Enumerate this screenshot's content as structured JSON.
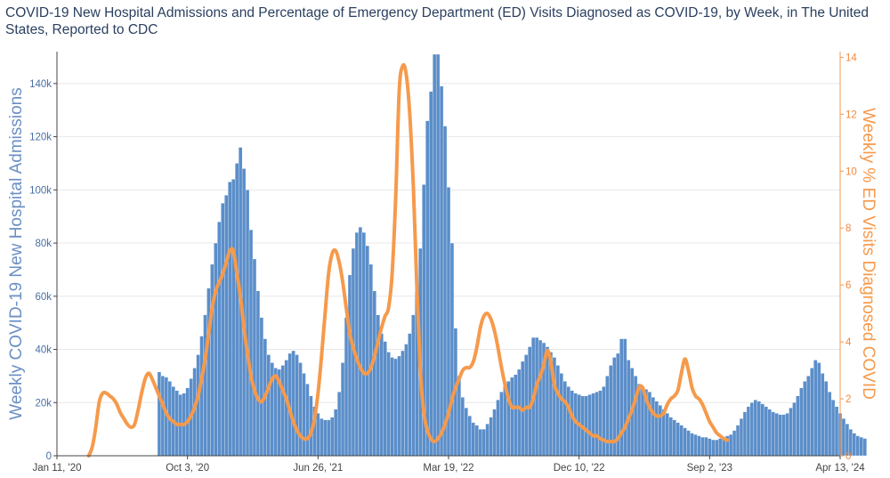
{
  "title": "COVID-19 New Hospital Admissions and Percentage of Emergency Department (ED) Visits Diagnosed as COVID-19, by Week, in The United States, Reported to CDC",
  "chart_data": {
    "type": "bar",
    "title": "COVID-19 New Hospital Admissions and Percentage of Emergency Department (ED) Visits Diagnosed as COVID-19, by Week, in The United States, Reported to CDC",
    "xlabel": "",
    "ylabel": "Weekly COVID-19 New Hospital Admissions",
    "y2label": "Weekly % ED Visits Diagnosed COVID",
    "ylim": [
      0,
      152000
    ],
    "y2lim": [
      0,
      14.2
    ],
    "xlim": [
      "2020-01-11",
      "2024-04-13"
    ],
    "x_ticks": [
      "Jan 11, '20",
      "Oct 3, '20",
      "Jun 26, '21",
      "Mar 19, '22",
      "Dec 10, '22",
      "Sep 2, '23",
      "Apr 13, '24"
    ],
    "y_ticks": [
      "0",
      "20k",
      "40k",
      "60k",
      "80k",
      "100k",
      "120k",
      "140k"
    ],
    "y2_ticks": [
      "0",
      "2",
      "4",
      "6",
      "8",
      "10",
      "12",
      "14"
    ],
    "colors": {
      "bars": "#5b8ec9",
      "ed_line": "#f59a4c"
    },
    "series": [
      {
        "name": "Weekly COVID-19 New Hospital Admissions",
        "type": "bar",
        "x_start": "2020-08-01",
        "x_end": "2024-04-13",
        "interval_days": 7,
        "values": [
          31500,
          30000,
          29500,
          28000,
          26000,
          24500,
          23000,
          23500,
          25500,
          29000,
          33000,
          38000,
          45000,
          53000,
          63000,
          72000,
          80000,
          88000,
          95000,
          98000,
          103000,
          104000,
          110000,
          116000,
          108000,
          100000,
          85000,
          74000,
          62000,
          52000,
          44000,
          38000,
          35000,
          33000,
          32500,
          34000,
          36000,
          38500,
          39500,
          38000,
          35000,
          31000,
          27000,
          22500,
          18500,
          16000,
          14000,
          13500,
          13500,
          14500,
          17500,
          24000,
          35000,
          52000,
          68000,
          78000,
          84000,
          86000,
          84000,
          79000,
          72000,
          62000,
          53000,
          46000,
          43000,
          39000,
          37000,
          36500,
          37500,
          39500,
          42000,
          46000,
          53000,
          62000,
          78000,
          102000,
          126000,
          137000,
          151000,
          151000,
          139000,
          124000,
          101000,
          80000,
          48000,
          30000,
          22000,
          18000,
          15000,
          12500,
          11500,
          10000,
          10000,
          12000,
          14500,
          17500,
          21000,
          24000,
          26500,
          28000,
          29500,
          30500,
          32500,
          35500,
          38000,
          41000,
          44500,
          44500,
          43500,
          42500,
          41000,
          39000,
          37000,
          34000,
          31000,
          28000,
          26000,
          24500,
          23500,
          23000,
          22500,
          22500,
          23000,
          23500,
          24000,
          24500,
          26000,
          30000,
          34000,
          37000,
          38500,
          44000,
          44000,
          36000,
          33000,
          30000,
          27000,
          26000,
          25000,
          24000,
          22000,
          20500,
          19000,
          17500,
          16000,
          14500,
          13500,
          12500,
          11500,
          10500,
          9500,
          8500,
          8000,
          7500,
          7000,
          7000,
          6500,
          6000,
          6000,
          6500,
          7000,
          7500,
          8000,
          9500,
          11500,
          14000,
          16500,
          18500,
          20000,
          21000,
          20500,
          19500,
          18500,
          17500,
          16500,
          16000,
          15500,
          15500,
          16000,
          18000,
          20000,
          22500,
          25500,
          28000,
          30000,
          33000,
          36000,
          35000,
          31000,
          28000,
          24000,
          21000,
          18500,
          16000,
          14000,
          12000,
          10000,
          8500,
          7500,
          7000,
          6500
        ]
      },
      {
        "name": "Weekly % ED Visits Diagnosed COVID",
        "type": "line",
        "points": [
          [
            "2020-03-14",
            0.0
          ],
          [
            "2020-03-21",
            0.3
          ],
          [
            "2020-03-28",
            1.0
          ],
          [
            "2020-04-04",
            1.9
          ],
          [
            "2020-04-11",
            2.2
          ],
          [
            "2020-04-18",
            2.2
          ],
          [
            "2020-04-25",
            2.1
          ],
          [
            "2020-05-02",
            2.0
          ],
          [
            "2020-05-09",
            1.8
          ],
          [
            "2020-05-16",
            1.5
          ],
          [
            "2020-05-23",
            1.3
          ],
          [
            "2020-05-30",
            1.1
          ],
          [
            "2020-06-06",
            1.0
          ],
          [
            "2020-06-13",
            1.1
          ],
          [
            "2020-06-20",
            1.6
          ],
          [
            "2020-06-27",
            2.2
          ],
          [
            "2020-07-04",
            2.7
          ],
          [
            "2020-07-11",
            2.9
          ],
          [
            "2020-07-18",
            2.7
          ],
          [
            "2020-07-25",
            2.4
          ],
          [
            "2020-08-01",
            2.1
          ],
          [
            "2020-08-08",
            1.8
          ],
          [
            "2020-08-15",
            1.5
          ],
          [
            "2020-08-22",
            1.3
          ],
          [
            "2020-08-29",
            1.2
          ],
          [
            "2020-09-05",
            1.1
          ],
          [
            "2020-09-12",
            1.1
          ],
          [
            "2020-09-19",
            1.1
          ],
          [
            "2020-09-26",
            1.2
          ],
          [
            "2020-10-03",
            1.4
          ],
          [
            "2020-10-10",
            1.7
          ],
          [
            "2020-10-17",
            2.1
          ],
          [
            "2020-10-24",
            2.7
          ],
          [
            "2020-10-31",
            3.4
          ],
          [
            "2020-11-07",
            4.3
          ],
          [
            "2020-11-14",
            5.2
          ],
          [
            "2020-11-21",
            5.8
          ],
          [
            "2020-11-28",
            6.1
          ],
          [
            "2020-12-05",
            6.4
          ],
          [
            "2020-12-12",
            6.8
          ],
          [
            "2020-12-19",
            7.2
          ],
          [
            "2020-12-26",
            7.2
          ],
          [
            "2021-01-02",
            6.4
          ],
          [
            "2021-01-09",
            5.6
          ],
          [
            "2021-01-16",
            4.5
          ],
          [
            "2021-01-23",
            3.6
          ],
          [
            "2021-01-30",
            2.8
          ],
          [
            "2021-02-06",
            2.3
          ],
          [
            "2021-02-13",
            2.0
          ],
          [
            "2021-02-20",
            1.9
          ],
          [
            "2021-02-27",
            2.1
          ],
          [
            "2021-03-06",
            2.4
          ],
          [
            "2021-03-13",
            2.7
          ],
          [
            "2021-03-20",
            2.8
          ],
          [
            "2021-03-27",
            2.6
          ],
          [
            "2021-04-03",
            2.3
          ],
          [
            "2021-04-10",
            2.0
          ],
          [
            "2021-04-17",
            1.6
          ],
          [
            "2021-04-24",
            1.2
          ],
          [
            "2021-05-01",
            0.9
          ],
          [
            "2021-05-08",
            0.7
          ],
          [
            "2021-05-15",
            0.6
          ],
          [
            "2021-05-22",
            0.6
          ],
          [
            "2021-05-29",
            0.8
          ],
          [
            "2021-06-05",
            1.3
          ],
          [
            "2021-06-12",
            2.2
          ],
          [
            "2021-06-19",
            3.5
          ],
          [
            "2021-06-26",
            5.0
          ],
          [
            "2021-07-03",
            6.4
          ],
          [
            "2021-07-10",
            7.1
          ],
          [
            "2021-07-17",
            7.2
          ],
          [
            "2021-07-24",
            6.8
          ],
          [
            "2021-07-31",
            6.1
          ],
          [
            "2021-08-07",
            5.2
          ],
          [
            "2021-08-14",
            4.3
          ],
          [
            "2021-08-21",
            3.8
          ],
          [
            "2021-08-28",
            3.4
          ],
          [
            "2021-09-04",
            3.1
          ],
          [
            "2021-09-11",
            2.9
          ],
          [
            "2021-09-18",
            2.9
          ],
          [
            "2021-09-25",
            3.1
          ],
          [
            "2021-10-02",
            3.5
          ],
          [
            "2021-10-09",
            4.0
          ],
          [
            "2021-10-16",
            4.5
          ],
          [
            "2021-10-23",
            4.9
          ],
          [
            "2021-10-30",
            5.2
          ],
          [
            "2021-11-06",
            6.4
          ],
          [
            "2021-11-13",
            9.0
          ],
          [
            "2021-11-20",
            12.8
          ],
          [
            "2021-11-27",
            13.7
          ],
          [
            "2021-12-04",
            13.4
          ],
          [
            "2021-12-11",
            12.0
          ],
          [
            "2021-12-18",
            9.5
          ],
          [
            "2021-12-25",
            6.0
          ],
          [
            "2022-01-01",
            3.0
          ],
          [
            "2022-01-08",
            1.5
          ],
          [
            "2022-01-15",
            0.9
          ],
          [
            "2022-01-22",
            0.6
          ],
          [
            "2022-01-29",
            0.5
          ],
          [
            "2022-02-05",
            0.6
          ],
          [
            "2022-02-12",
            0.8
          ],
          [
            "2022-02-19",
            1.1
          ],
          [
            "2022-02-26",
            1.5
          ],
          [
            "2022-03-05",
            2.0
          ],
          [
            "2022-03-12",
            2.4
          ],
          [
            "2022-03-19",
            2.7
          ],
          [
            "2022-03-26",
            3.0
          ],
          [
            "2022-04-02",
            3.1
          ],
          [
            "2022-04-09",
            3.1
          ],
          [
            "2022-04-16",
            3.3
          ],
          [
            "2022-04-23",
            3.8
          ],
          [
            "2022-04-30",
            4.5
          ],
          [
            "2022-05-07",
            4.9
          ],
          [
            "2022-05-14",
            5.0
          ],
          [
            "2022-05-21",
            4.8
          ],
          [
            "2022-05-28",
            4.4
          ],
          [
            "2022-06-04",
            3.8
          ],
          [
            "2022-06-11",
            3.1
          ],
          [
            "2022-06-18",
            2.5
          ],
          [
            "2022-06-25",
            2.0
          ],
          [
            "2022-07-02",
            1.7
          ],
          [
            "2022-07-09",
            1.7
          ],
          [
            "2022-07-16",
            1.7
          ],
          [
            "2022-07-23",
            1.6
          ],
          [
            "2022-07-30",
            1.7
          ],
          [
            "2022-08-06",
            1.7
          ],
          [
            "2022-08-13",
            2.0
          ],
          [
            "2022-08-20",
            2.5
          ],
          [
            "2022-08-27",
            2.8
          ],
          [
            "2022-09-03",
            3.2
          ],
          [
            "2022-09-10",
            3.7
          ],
          [
            "2022-09-17",
            3.3
          ],
          [
            "2022-09-24",
            2.5
          ],
          [
            "2022-10-01",
            2.2
          ],
          [
            "2022-10-08",
            2.0
          ],
          [
            "2022-10-15",
            1.9
          ],
          [
            "2022-10-22",
            1.7
          ],
          [
            "2022-10-29",
            1.4
          ],
          [
            "2022-11-05",
            1.2
          ],
          [
            "2022-11-12",
            1.1
          ],
          [
            "2022-11-19",
            1.0
          ],
          [
            "2022-11-26",
            0.9
          ],
          [
            "2022-12-03",
            0.8
          ],
          [
            "2022-12-10",
            0.7
          ],
          [
            "2022-12-17",
            0.7
          ],
          [
            "2022-12-24",
            0.6
          ],
          [
            "2022-12-31",
            0.55
          ],
          [
            "2023-01-07",
            0.5
          ],
          [
            "2023-01-14",
            0.5
          ],
          [
            "2023-01-21",
            0.5
          ],
          [
            "2023-01-28",
            0.6
          ],
          [
            "2023-02-04",
            0.8
          ],
          [
            "2023-02-11",
            1.0
          ],
          [
            "2023-02-18",
            1.3
          ],
          [
            "2023-02-25",
            1.6
          ],
          [
            "2023-03-04",
            2.0
          ],
          [
            "2023-03-11",
            2.4
          ],
          [
            "2023-03-18",
            2.4
          ],
          [
            "2023-03-25",
            2.0
          ],
          [
            "2023-04-01",
            1.7
          ],
          [
            "2023-04-08",
            1.5
          ],
          [
            "2023-04-15",
            1.4
          ],
          [
            "2023-04-22",
            1.4
          ],
          [
            "2023-04-29",
            1.5
          ],
          [
            "2023-05-06",
            1.8
          ],
          [
            "2023-05-13",
            2.0
          ],
          [
            "2023-05-20",
            2.1
          ],
          [
            "2023-05-27",
            2.3
          ],
          [
            "2023-06-03",
            2.9
          ],
          [
            "2023-06-10",
            3.4
          ],
          [
            "2023-06-17",
            3.0
          ],
          [
            "2023-06-24",
            2.4
          ],
          [
            "2023-07-01",
            2.1
          ],
          [
            "2023-07-08",
            2.0
          ],
          [
            "2023-07-15",
            1.8
          ],
          [
            "2023-07-22",
            1.5
          ],
          [
            "2023-07-29",
            1.2
          ],
          [
            "2023-08-05",
            1.0
          ],
          [
            "2023-08-12",
            0.8
          ],
          [
            "2023-08-19",
            0.7
          ],
          [
            "2023-08-26",
            0.6
          ],
          [
            "2023-09-02",
            0.55
          ]
        ]
      }
    ]
  }
}
